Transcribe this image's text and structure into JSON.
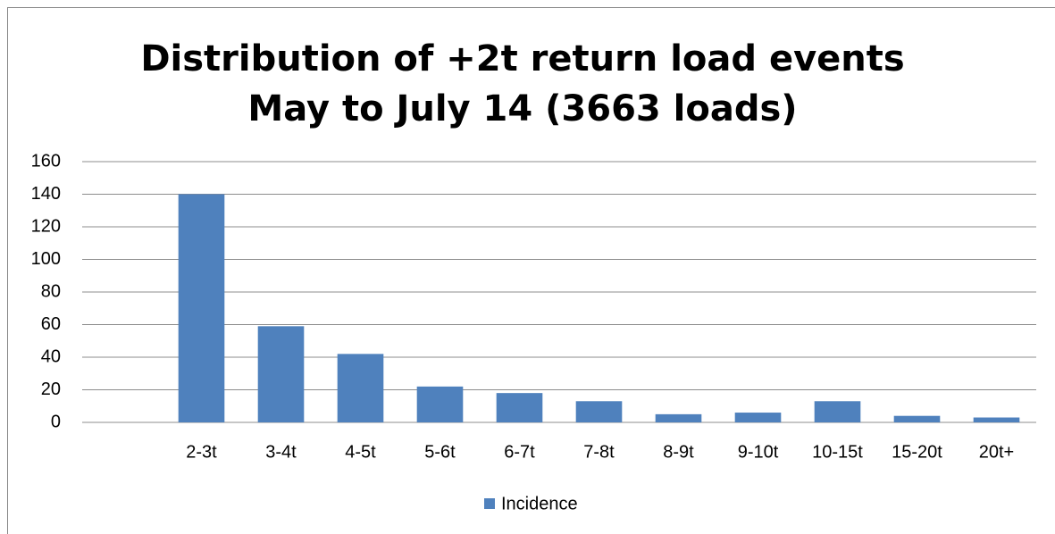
{
  "chart_data": {
    "type": "bar",
    "title": "Distribution of +2t return load events May to July 14 (3663 loads)",
    "categories": [
      null,
      "2-3t",
      "3-4t",
      "4-5t",
      "5-6t",
      "6-7t",
      "7-8t",
      "8-9t",
      "9-10t",
      "10-15t",
      "15-20t",
      "20t+"
    ],
    "series": [
      {
        "name": "Incidence",
        "color": "#4f81bd",
        "values": [
          null,
          140,
          59,
          42,
          22,
          18,
          13,
          5,
          6,
          13,
          4,
          3
        ]
      }
    ],
    "ylim": [
      0,
      160
    ],
    "yticks": [
      0,
      20,
      40,
      60,
      80,
      100,
      120,
      140,
      160
    ],
    "grid": true,
    "legend": "bottom"
  }
}
